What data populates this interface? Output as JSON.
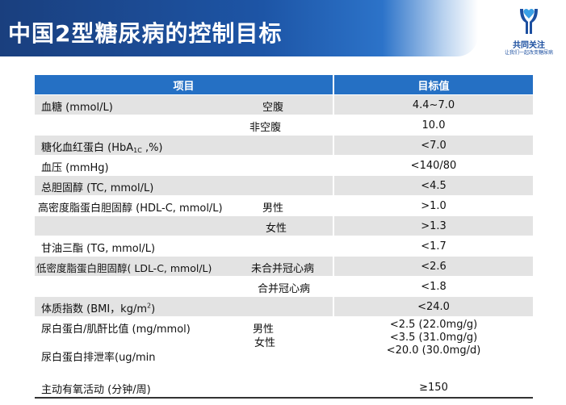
{
  "header": {
    "title": "中国2型糖尿病的控制目标",
    "logo_name": "共同关注",
    "logo_slogan": "让我们一起改变糖尿病"
  },
  "table": {
    "columns": [
      "项目",
      "目标值"
    ],
    "rows": [
      {
        "item": "血糖 (mmol/L)",
        "condition": "空腹",
        "value": "4.4~7.0"
      },
      {
        "item": "",
        "condition": "非空腹",
        "value": "10.0"
      },
      {
        "item_prefix": "糖化血红蛋白 (HbA",
        "item_sub": "1C",
        "item_suffix": " ,%)",
        "condition": "",
        "value": "<7.0"
      },
      {
        "item": "血压 (mmHg)",
        "condition": "",
        "value": "<140/80"
      },
      {
        "item": "总胆固醇 (TC, mmol/L)",
        "condition": "",
        "value": "<4.5"
      },
      {
        "item": "高密度脂蛋白胆固醇 (HDL-C, mmol/L)",
        "condition": "男性",
        "value": ">1.0"
      },
      {
        "item": "",
        "condition": "女性",
        "value": ">1.3"
      },
      {
        "item": "甘油三酯 (TG, mmol/L)",
        "condition": "",
        "value": "<1.7"
      },
      {
        "item": "低密度脂蛋白胆固醇( LDL-C, mmol/L)",
        "condition": "未合并冠心病",
        "value": "<2.6"
      },
      {
        "item": "",
        "condition": "合并冠心病",
        "value": "<1.8"
      },
      {
        "item_prefix": "体质指数 (BMI，kg/m",
        "item_sup": "2",
        "item_suffix": ")",
        "condition": "",
        "value": "<24.0"
      },
      {
        "item": "尿白蛋白/肌酐比值 (mg/mmol)",
        "item2": "尿白蛋白排泄率(ug/min",
        "condition": "男性",
        "condition2": "女性",
        "value": "<2.5 (22.0mg/g)",
        "value2": "<3.5 (31.0mg/g)",
        "value3": "<20.0 (30.0mg/d)"
      },
      {
        "item": "主动有氧活动 (分钟/周)",
        "condition": "",
        "value": "≥150"
      }
    ]
  },
  "colors": {
    "banner": "#1d55a6",
    "header_row": "#2570c4",
    "shade_row": "#e3e3e3",
    "logo": "#1c4fa0"
  }
}
